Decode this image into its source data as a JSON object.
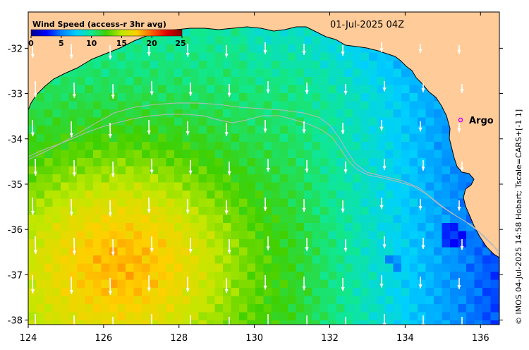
{
  "colorbar": {
    "title": "Wind Speed (access-r 3hr avg)",
    "ticks": [
      "0",
      "5",
      "10",
      "15",
      "20",
      "25"
    ],
    "stops": [
      "#00008f",
      "#0000ff",
      "#0080ff",
      "#00d0ff",
      "#10e890",
      "#40d000",
      "#c0e800",
      "#ffd000",
      "#ff6000",
      "#e00000",
      "#800000"
    ]
  },
  "timestamp": "01-Jul-2025 04Z",
  "station": {
    "name": "Argo",
    "lon": 135.5,
    "lat": -33.6,
    "color": "#e600e6"
  },
  "credit": "© IMOS 04-Jul-2025 14:58 Hobart; Tscale=CARS+[-1 1]",
  "axes": {
    "x_ticks": [
      124,
      126,
      128,
      130,
      132,
      134,
      136
    ],
    "y_ticks": [
      -32,
      -33,
      -34,
      -35,
      -36,
      -37,
      -38
    ],
    "x_range": [
      124,
      136.5
    ],
    "y_range": [
      -38.1,
      -31.2
    ]
  },
  "colors": {
    "land": "#ffcc99",
    "coast": "#000000",
    "contour": "#b8b8b8",
    "vectors": "#ffffff"
  }
}
